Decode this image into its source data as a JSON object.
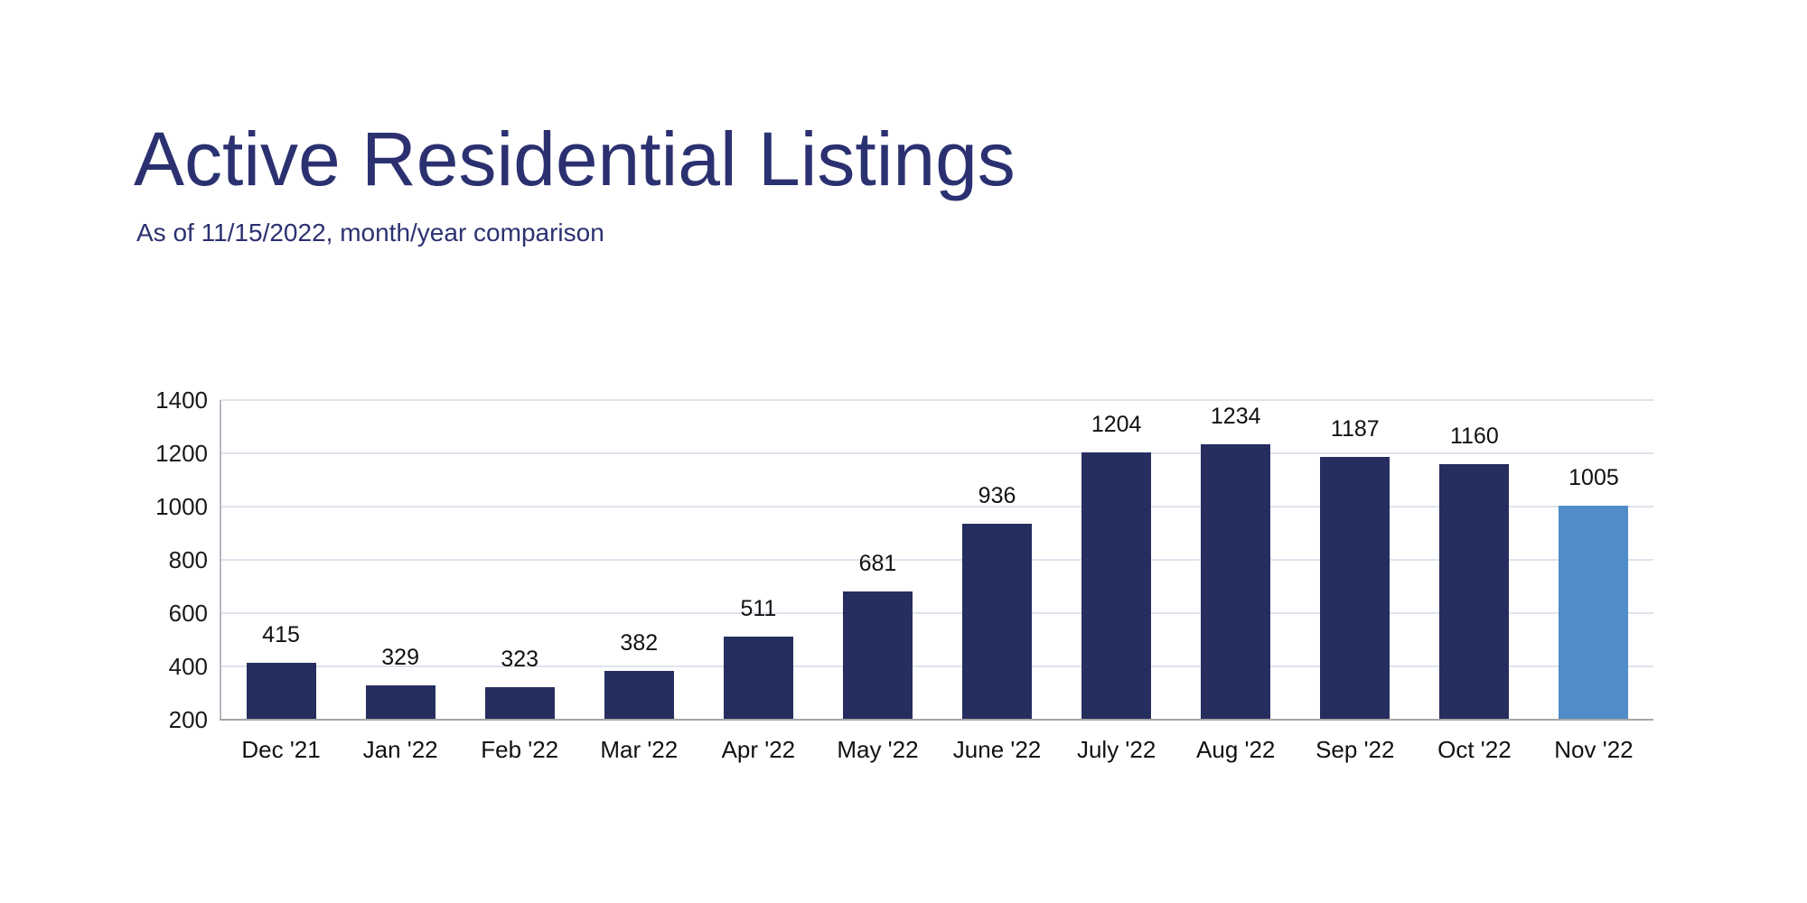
{
  "header": {
    "title": "Active Residential Listings",
    "subtitle": "As of 11/15/2022, month/year comparison"
  },
  "chart_data": {
    "type": "bar",
    "categories": [
      "Dec '21",
      "Jan '22",
      "Feb '22",
      "Mar '22",
      "Apr '22",
      "May '22",
      "June '22",
      "July '22",
      "Aug '22",
      "Sep '22",
      "Oct '22",
      "Nov '22"
    ],
    "values": [
      415,
      329,
      323,
      382,
      511,
      681,
      936,
      1204,
      1234,
      1187,
      1160,
      1005
    ],
    "title": "Active Residential Listings",
    "subtitle": "As of 11/15/2022, month/year comparison",
    "xlabel": "",
    "ylabel": "",
    "ylim": [
      200,
      1400
    ],
    "ytick_step": 200,
    "yticks": [
      200,
      400,
      600,
      800,
      1000,
      1200,
      1400
    ],
    "grid": true,
    "legend": false,
    "data_labels": true,
    "highlight_index": 11
  },
  "colors": {
    "bar": "#262e5f",
    "bar_highlight": "#4f8cc8",
    "title_text": "#2b3170",
    "gridline": "#dee3ee",
    "axis_x": "#a6a6a6",
    "axis_y": "#b4b8c0",
    "label_text": "#111111"
  }
}
